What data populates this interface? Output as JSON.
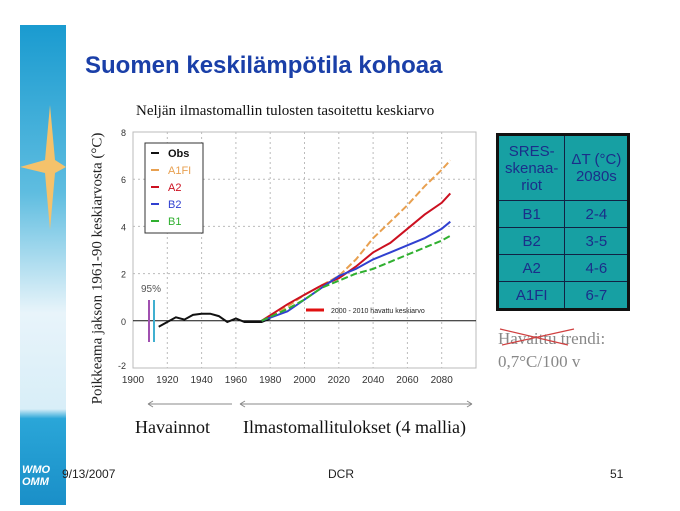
{
  "slide": {
    "title": "Suomen keskilämpötila kohoaa",
    "date": "9/13/2007",
    "footer_center": "DCR",
    "page_number": "51",
    "logo": "WMO OMM"
  },
  "chart_data": {
    "type": "line",
    "title": "Neljän ilmastomallin tulosten tasoitettu keskiarvo",
    "ylabel": "Poikkeama jakson 1961-90 keskiarvosta (°C)",
    "xlim": [
      1900,
      2100
    ],
    "ylim": [
      -2,
      8
    ],
    "xticks": [
      1900,
      1920,
      1940,
      1960,
      1980,
      2000,
      2020,
      2040,
      2060,
      2080
    ],
    "yticks": [
      -2,
      0,
      2,
      4,
      6,
      8
    ],
    "grid": true,
    "legend": "top-left",
    "series": [
      {
        "name": "Obs",
        "color": "#111111",
        "dash": false,
        "x": [
          1915,
          1920,
          1925,
          1930,
          1935,
          1940,
          1945,
          1950,
          1955,
          1960,
          1965,
          1970,
          1975,
          1980
        ],
        "y": [
          -0.25,
          -0.05,
          0.15,
          0.05,
          0.25,
          0.3,
          0.3,
          0.2,
          -0.05,
          0.1,
          -0.05,
          -0.05,
          -0.05,
          0.1
        ]
      },
      {
        "name": "A1FI",
        "color": "#e8a050",
        "dash": true,
        "x": [
          1975,
          1990,
          2000,
          2010,
          2020,
          2030,
          2040,
          2050,
          2060,
          2070,
          2080,
          2085
        ],
        "y": [
          0,
          0.6,
          1.1,
          1.5,
          1.9,
          2.6,
          3.5,
          4.2,
          4.9,
          5.7,
          6.4,
          6.8
        ]
      },
      {
        "name": "A2",
        "color": "#cc1020",
        "dash": false,
        "x": [
          1975,
          1990,
          2000,
          2010,
          2020,
          2030,
          2040,
          2050,
          2060,
          2070,
          2080,
          2085
        ],
        "y": [
          0,
          0.7,
          1.1,
          1.5,
          1.8,
          2.3,
          2.9,
          3.3,
          3.9,
          4.5,
          5.0,
          5.4
        ]
      },
      {
        "name": "B2",
        "color": "#3040d0",
        "dash": false,
        "x": [
          1975,
          1990,
          2000,
          2010,
          2020,
          2030,
          2040,
          2050,
          2060,
          2070,
          2080,
          2085
        ],
        "y": [
          0,
          0.4,
          0.9,
          1.4,
          1.9,
          2.2,
          2.6,
          2.9,
          3.2,
          3.5,
          3.9,
          4.2
        ]
      },
      {
        "name": "B1",
        "color": "#30b030",
        "dash": true,
        "x": [
          1975,
          1990,
          2000,
          2010,
          2020,
          2030,
          2040,
          2050,
          2060,
          2070,
          2080,
          2085
        ],
        "y": [
          0,
          0.5,
          0.9,
          1.4,
          1.7,
          2.0,
          2.2,
          2.5,
          2.8,
          3.1,
          3.4,
          3.6
        ]
      }
    ],
    "annotations": {
      "ci": "95%",
      "observed_mean": "2000 - 2010 havattu keskiarvo"
    }
  },
  "table": {
    "header": [
      "SRES-skenaa-riot",
      "ΔT (°C) 2080s"
    ],
    "rows": [
      [
        "B1",
        "2-4"
      ],
      [
        "B2",
        "3-5"
      ],
      [
        "A2",
        "4-6"
      ],
      [
        "A1FI",
        "6-7"
      ]
    ]
  },
  "trend": {
    "line1": "Havaittu trendi:",
    "line2": "0,7°C/100 v"
  },
  "bottom": {
    "left": "Havainnot",
    "right": "Ilmastomallitulokset (4 mallia)"
  }
}
